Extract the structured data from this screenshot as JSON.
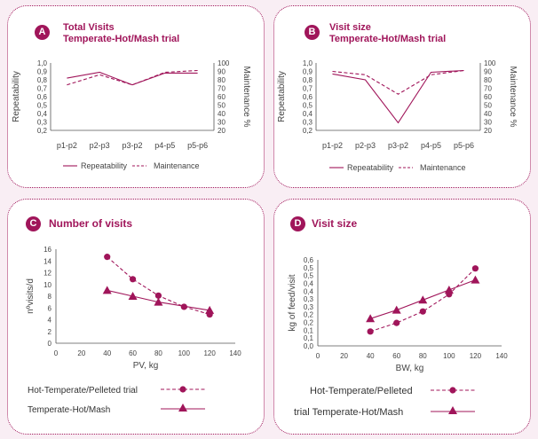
{
  "colors": {
    "accent": "#a0155a",
    "axis": "#555555",
    "background": "#f9eef4"
  },
  "chart_data": [
    {
      "id": "A",
      "type": "line",
      "badge": "A",
      "title": "Total Visits",
      "subtitle": "Temperate-Hot/Mash trial",
      "categories": [
        "p1-p2",
        "p2-p3",
        "p3-p2",
        "p4-p5",
        "p5-p6"
      ],
      "ylabel": "Repeatability",
      "ylim": [
        0.2,
        1.0
      ],
      "yticks": [
        "0,2",
        "0,3",
        "0,4",
        "0,5",
        "0,6",
        "0,7",
        "0,8",
        "0,9",
        "1,0"
      ],
      "y2label": "Maintenance %",
      "y2lim": [
        20,
        100
      ],
      "y2ticks": [
        "20",
        "30",
        "40",
        "50",
        "60",
        "70",
        "80",
        "90",
        "100"
      ],
      "series": [
        {
          "name": "Repeatability",
          "axis": "left",
          "style": "solid",
          "values": [
            0.82,
            0.89,
            0.74,
            0.88,
            0.88
          ]
        },
        {
          "name": "Maintenance",
          "axis": "right",
          "style": "dashed",
          "values": [
            74,
            86,
            74,
            89,
            91
          ]
        }
      ],
      "legend": [
        "Repeatability",
        "Maintenance"
      ]
    },
    {
      "id": "B",
      "type": "line",
      "badge": "B",
      "title": "Visit size",
      "subtitle": "Temperate-Hot/Mash trial",
      "categories": [
        "p1-p2",
        "p2-p3",
        "p3-p2",
        "p4-p5",
        "p5-p6"
      ],
      "ylabel": "Repeatability",
      "ylim": [
        0.2,
        1.0
      ],
      "yticks": [
        "0,2",
        "0,3",
        "0,4",
        "0,5",
        "0,6",
        "0,7",
        "0,8",
        "0,9",
        "1,0"
      ],
      "y2label": "Maintenance %",
      "y2lim": [
        20,
        100
      ],
      "y2ticks": [
        "20",
        "30",
        "40",
        "50",
        "60",
        "70",
        "80",
        "90",
        "100"
      ],
      "series": [
        {
          "name": "Repeatability",
          "axis": "left",
          "style": "solid",
          "values": [
            0.87,
            0.8,
            0.29,
            0.89,
            0.91
          ]
        },
        {
          "name": "Maintenance",
          "axis": "right",
          "style": "dashed",
          "values": [
            90,
            86,
            63,
            86,
            91
          ]
        }
      ],
      "legend": [
        "Repeatability",
        "Maintenance"
      ]
    },
    {
      "id": "C",
      "type": "scatter",
      "badge": "C",
      "title": "Number of visits",
      "xlabel": "PV, kg",
      "xlim": [
        0,
        140
      ],
      "xticks": [
        "0",
        "20",
        "40",
        "60",
        "80",
        "100",
        "120",
        "140"
      ],
      "ylabel": "nºvisits/d",
      "ylim": [
        0,
        16
      ],
      "yticks": [
        "0",
        "2",
        "4",
        "6",
        "8",
        "10",
        "12",
        "14",
        "16"
      ],
      "series": [
        {
          "name": "Hot-Temperate/Pelleted trial",
          "style": "dashed",
          "marker": "circle",
          "x": [
            40,
            60,
            80,
            100,
            120
          ],
          "y": [
            14.7,
            10.9,
            8.1,
            6.2,
            4.9
          ]
        },
        {
          "name": "Temperate-Hot/Mash",
          "style": "solid",
          "marker": "triangle",
          "x": [
            40,
            60,
            80,
            120
          ],
          "y": [
            9.0,
            8.0,
            7.0,
            5.6
          ]
        }
      ]
    },
    {
      "id": "D",
      "type": "scatter",
      "badge": "D",
      "title": "Visit size",
      "xlabel": "BW, kg",
      "xlim": [
        0,
        140
      ],
      "xticks": [
        "0",
        "20",
        "40",
        "60",
        "80",
        "100",
        "120",
        "140"
      ],
      "ylabel": "kg of feed/visit",
      "ylim": [
        0,
        0.6
      ],
      "yticks": [
        "0,0",
        "0,1",
        "0,1",
        "0,2",
        "0,2",
        "0,3",
        "0,3",
        "0,4",
        "0,4",
        "0,5",
        "0,5",
        "0,6"
      ],
      "series": [
        {
          "name": "Hot-Temperate/Pelleted",
          "style": "dashed",
          "marker": "circle",
          "x": [
            40,
            60,
            80,
            100,
            120
          ],
          "y": [
            0.1,
            0.16,
            0.24,
            0.36,
            0.54
          ]
        },
        {
          "name": "trial Temperate-Hot/Mash",
          "style": "solid",
          "marker": "triangle",
          "x": [
            40,
            60,
            80,
            100,
            120
          ],
          "y": [
            0.19,
            0.25,
            0.32,
            0.39,
            0.46
          ]
        }
      ]
    }
  ]
}
